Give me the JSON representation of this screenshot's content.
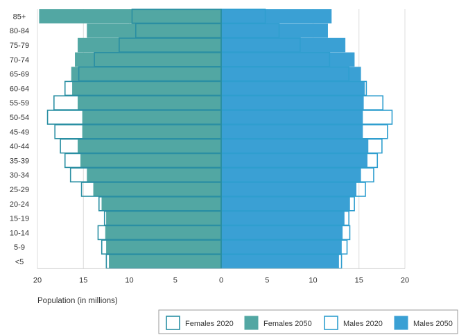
{
  "chart_data": {
    "type": "bar",
    "orientation": "horizontal-population-pyramid",
    "categories": [
      "85+",
      "80-84",
      "75-79",
      "70-74",
      "65-69",
      "60-64",
      "55-59",
      "50-54",
      "45-49",
      "40-44",
      "35-39",
      "30-34",
      "25-29",
      "20-24",
      "15-19",
      "10-14",
      "5-9",
      "<5"
    ],
    "series": [
      {
        "name": "Females 2020",
        "side": "left",
        "color": "#2a8fa3",
        "fill": "none",
        "values": [
          9.7,
          9.3,
          11.1,
          13.8,
          15.5,
          17.0,
          18.2,
          18.9,
          18.1,
          17.5,
          17.0,
          16.4,
          15.2,
          13.3,
          12.7,
          13.4,
          13.0,
          12.5
        ]
      },
      {
        "name": "Females 2050",
        "side": "left",
        "color": "#52a7a3",
        "fill": "solid",
        "values": [
          19.8,
          14.6,
          15.6,
          15.9,
          16.3,
          16.2,
          15.6,
          15.1,
          15.1,
          15.6,
          15.3,
          14.6,
          13.9,
          13.0,
          12.5,
          12.6,
          12.5,
          12.2
        ]
      },
      {
        "name": "Males 2020",
        "side": "right",
        "color": "#2f9ecf",
        "fill": "none",
        "values": [
          4.8,
          6.3,
          8.6,
          11.8,
          13.9,
          15.8,
          17.6,
          18.6,
          18.1,
          17.5,
          17.0,
          16.6,
          15.7,
          14.5,
          13.9,
          14.0,
          13.7,
          13.1
        ]
      },
      {
        "name": "Males 2050",
        "side": "right",
        "color": "#3aa0d4",
        "fill": "solid",
        "values": [
          12.0,
          11.6,
          13.5,
          14.5,
          15.2,
          15.6,
          15.5,
          15.4,
          15.4,
          16.0,
          15.9,
          15.2,
          14.7,
          14.0,
          13.4,
          13.2,
          13.1,
          12.8
        ]
      }
    ],
    "xlabel": "Population (in millions)",
    "x_ticks": [
      "20",
      "15",
      "10",
      "5",
      "0",
      "5",
      "10",
      "15",
      "20"
    ],
    "x_tick_values": [
      -20,
      -15,
      -10,
      -5,
      0,
      5,
      10,
      15,
      20
    ],
    "xlim": [
      -20,
      20
    ],
    "grid": true,
    "legend": "bottom-right",
    "legend_labels": [
      "Females 2020",
      "Females 2050",
      "Males 2020",
      "Males 2050"
    ]
  }
}
